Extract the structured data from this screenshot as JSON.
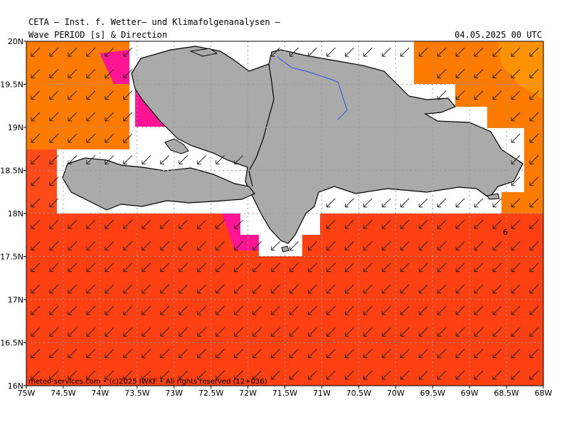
{
  "header": {
    "institute": "CETA — Inst. f. Wetter— und Klimafolgenanalysen —",
    "variable": "Wave PERIOD [s] & Direction",
    "datetime": "04.05.2025 00 UTC"
  },
  "footer": {
    "credit": "meteo-services.com • (c)2025 IWKF • All rights reserved (12+036)"
  },
  "axes": {
    "lon_labels": [
      "75W",
      "74.5W",
      "74W",
      "73.5W",
      "73W",
      "72.5W",
      "72W",
      "71.5W",
      "71W",
      "70.5W",
      "70W",
      "69.5W",
      "69W",
      "68.5W",
      "68W"
    ],
    "lat_labels": [
      "20N",
      "19.5N",
      "19N",
      "18.5N",
      "18N",
      "17.5N",
      "17N",
      "16.5N",
      "16N"
    ]
  },
  "contour_labels": [
    "6"
  ],
  "colors": {
    "sea_red": "#ff4013",
    "sea_orange": "#ff7b00",
    "sea_light_orange": "#ff9200",
    "magenta": "#ff1493",
    "land": "#aaaaaa",
    "river": "#3050e0"
  },
  "arrow_direction": "south-west"
}
